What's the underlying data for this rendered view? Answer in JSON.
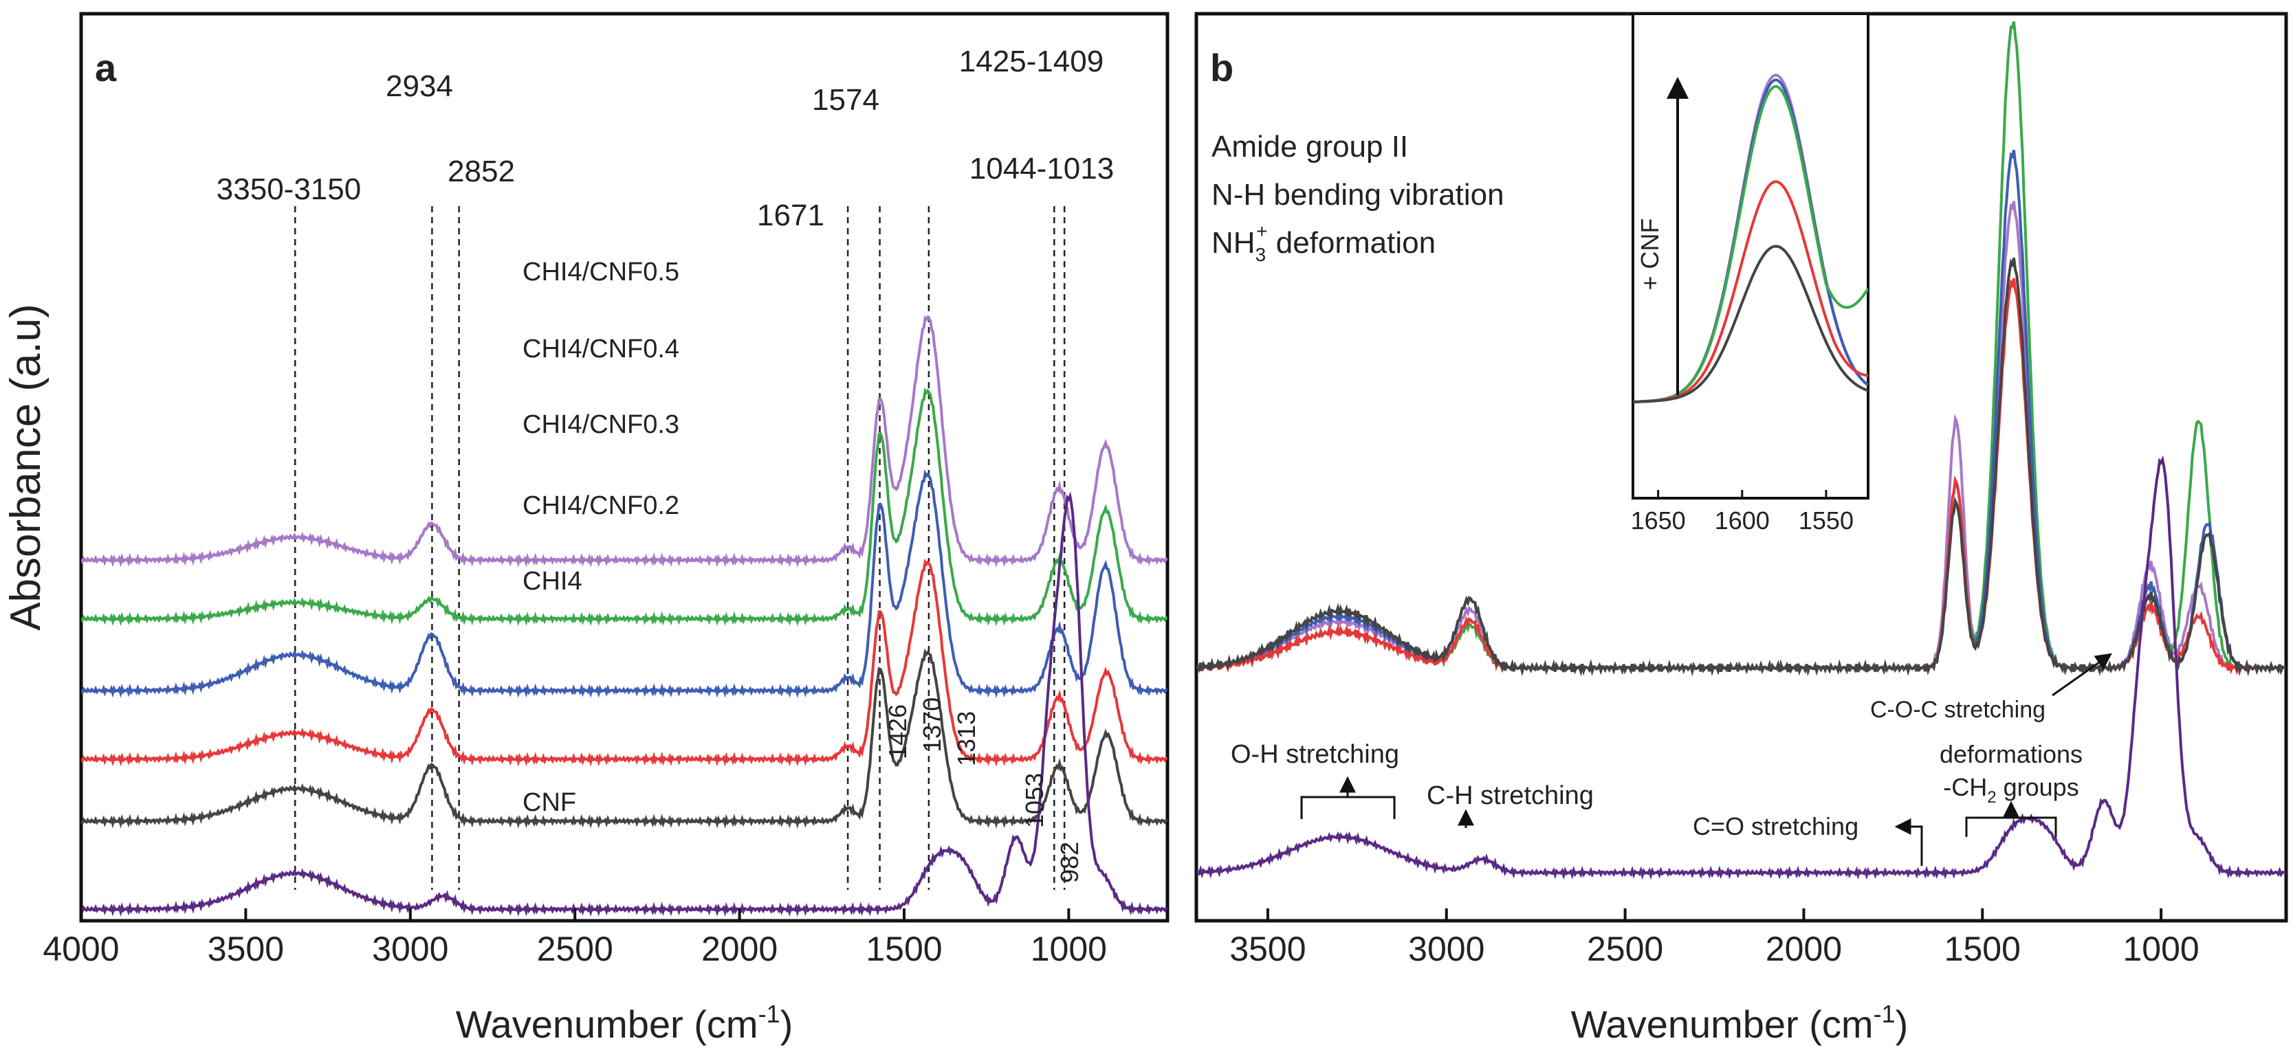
{
  "colors": {
    "CHI4/CNF0.5": "#a678c8",
    "CHI4/CNF0.4": "#3aa94a",
    "CHI4/CNF0.3": "#3e5db3",
    "CHI4/CNF0.2": "#e8373a",
    "CHI4": "#444444",
    "CNF": "#5a2a86"
  },
  "figure": {
    "ylabel": "Absorbance (a.u)",
    "panel_a": {
      "letter": "a",
      "xlabel_main": "Wavenumber (cm",
      "xlabel_sup": "-1",
      "xlabel_close": ")",
      "series_labels": [
        "CHI4/CNF0.5",
        "CHI4/CNF0.4",
        "CHI4/CNF0.3",
        "CHI4/CNF0.2",
        "CHI4",
        "CNF"
      ],
      "peaks": [
        "3350-3150",
        "2934",
        "2852",
        "1671",
        "1574",
        "1425-1409",
        "1044-1013"
      ],
      "cnf_peaks": [
        "1426",
        "1370",
        "1313",
        "1053",
        "982"
      ]
    },
    "panel_b": {
      "letter": "b",
      "xlabel_main": "Wavenumber (cm",
      "xlabel_sup": "-1",
      "xlabel_close": ")",
      "amide_lines": [
        "Amide group II",
        "N-H bending vibration"
      ],
      "nh3_main": "NH",
      "nh3_sub": "3",
      "nh3_sup": "+",
      "nh3_rest": " deformation",
      "annotations": {
        "coc": "C-O-C stretching",
        "oh": "O-H stretching",
        "ch": "C-H stretching",
        "co": "C=O stretching",
        "def1": "deformations",
        "def2_pre": "-CH",
        "def2_sub": "2",
        "def2_post": " groups"
      },
      "inset": {
        "arrow_label": "+ CNF"
      }
    }
  },
  "chart_data": [
    {
      "type": "line",
      "panel": "a",
      "title": "",
      "xlabel": "Wavenumber (cm-1)",
      "ylabel": "Absorbance (a.u)",
      "xlim": [
        4000,
        700
      ],
      "x_ticks": [
        4000,
        3500,
        3000,
        2500,
        2000,
        1500,
        1000
      ],
      "x_tick_labels": [
        "4000",
        "3500",
        "3000",
        "2500",
        "2000",
        "1500",
        "1000"
      ],
      "y_ticks": [],
      "dashed_lines": [
        3350,
        2934,
        2852,
        1671,
        1574,
        1425,
        1044,
        1013
      ],
      "series": [
        {
          "name": "CHI4/CNF0.5",
          "offset": 5.0,
          "features": [
            [
              3350,
              0.35
            ],
            [
              2934,
              0.55
            ],
            [
              1671,
              0.2
            ],
            [
              1574,
              2.3
            ],
            [
              1500,
              0.9
            ],
            [
              1425,
              3.55
            ],
            [
              1030,
              1.1
            ],
            [
              895,
              1.3
            ],
            [
              870,
              0.6
            ]
          ]
        },
        {
          "name": "CHI4/CNF0.4",
          "offset": 4.1,
          "features": [
            [
              3350,
              0.25
            ],
            [
              2934,
              0.3
            ],
            [
              1671,
              0.15
            ],
            [
              1574,
              2.65
            ],
            [
              1500,
              1.0
            ],
            [
              1425,
              3.3
            ],
            [
              1030,
              0.9
            ],
            [
              895,
              1.2
            ],
            [
              870,
              0.6
            ]
          ]
        },
        {
          "name": "CHI4/CNF0.3",
          "offset": 3.0,
          "features": [
            [
              3350,
              0.55
            ],
            [
              2934,
              0.85
            ],
            [
              1671,
              0.2
            ],
            [
              1574,
              2.65
            ],
            [
              1500,
              1.1
            ],
            [
              1425,
              3.1
            ],
            [
              1030,
              0.95
            ],
            [
              895,
              1.45
            ],
            [
              870,
              0.6
            ]
          ]
        },
        {
          "name": "CHI4/CNF0.2",
          "offset": 1.95,
          "features": [
            [
              3350,
              0.4
            ],
            [
              2934,
              0.75
            ],
            [
              1671,
              0.2
            ],
            [
              1574,
              2.1
            ],
            [
              1500,
              0.85
            ],
            [
              1425,
              2.85
            ],
            [
              1030,
              0.95
            ],
            [
              895,
              0.85
            ],
            [
              870,
              0.6
            ]
          ]
        },
        {
          "name": "CHI4",
          "offset": 1.0,
          "features": [
            [
              3350,
              0.5
            ],
            [
              2934,
              0.85
            ],
            [
              1671,
              0.2
            ],
            [
              1574,
              2.2
            ],
            [
              1500,
              0.7
            ],
            [
              1425,
              2.45
            ],
            [
              1030,
              0.85
            ],
            [
              895,
              0.85
            ],
            [
              870,
              0.6
            ]
          ]
        },
        {
          "name": "CNF",
          "offset": -0.35,
          "features": [
            [
              3350,
              0.55
            ],
            [
              2900,
              0.2
            ],
            [
              1426,
              0.45
            ],
            [
              1370,
              0.55
            ],
            [
              1313,
              0.5
            ],
            [
              1160,
              1.1
            ],
            [
              1053,
              3.0
            ],
            [
              1000,
              3.6
            ],
            [
              982,
              2.5
            ],
            [
              897,
              0.5
            ]
          ]
        }
      ]
    },
    {
      "type": "line",
      "panel": "b",
      "title": "",
      "xlabel": "Wavenumber (cm-1)",
      "xlim": [
        3700,
        650
      ],
      "x_ticks": [
        3500,
        3000,
        2500,
        2000,
        1500,
        1000
      ],
      "x_tick_labels": [
        "3500",
        "3000",
        "2500",
        "2000",
        "1500",
        "1000"
      ],
      "y_ticks": [],
      "series": [
        {
          "name": "CHI4/CNF0.5",
          "features": [
            [
              3300,
              0.45
            ],
            [
              2934,
              0.55
            ],
            [
              1574,
              2.4
            ],
            [
              1415,
              4.5
            ],
            [
              1030,
              1.0
            ],
            [
              895,
              0.8
            ]
          ]
        },
        {
          "name": "CHI4/CNF0.4",
          "features": [
            [
              3300,
              0.35
            ],
            [
              2934,
              0.4
            ],
            [
              1574,
              1.8
            ],
            [
              1415,
              6.25
            ],
            [
              1030,
              0.6
            ],
            [
              895,
              2.4
            ]
          ]
        },
        {
          "name": "CHI4/CNF0.3",
          "features": [
            [
              3300,
              0.5
            ],
            [
              2934,
              0.65
            ],
            [
              1574,
              1.8
            ],
            [
              1415,
              5.0
            ],
            [
              1030,
              0.8
            ],
            [
              870,
              1.4
            ]
          ]
        },
        {
          "name": "CHI4/CNF0.2",
          "features": [
            [
              3300,
              0.35
            ],
            [
              2934,
              0.45
            ],
            [
              1574,
              1.8
            ],
            [
              1415,
              3.75
            ],
            [
              1030,
              0.6
            ],
            [
              895,
              0.5
            ]
          ]
        },
        {
          "name": "CHI4",
          "features": [
            [
              3300,
              0.55
            ],
            [
              2934,
              0.65
            ],
            [
              1574,
              1.6
            ],
            [
              1415,
              3.95
            ],
            [
              1030,
              0.7
            ],
            [
              870,
              1.3
            ]
          ]
        },
        {
          "name": "CNF",
          "features": [
            [
              3300,
              0.55
            ],
            [
              2900,
              0.2
            ],
            [
              1426,
              0.45
            ],
            [
              1370,
              0.5
            ],
            [
              1313,
              0.45
            ],
            [
              1160,
              1.1
            ],
            [
              1053,
              3.0
            ],
            [
              1000,
              3.6
            ],
            [
              982,
              2.5
            ],
            [
              897,
              0.5
            ]
          ]
        }
      ]
    },
    {
      "type": "line",
      "panel": "b-inset",
      "xlabel": "",
      "xlim": [
        1665,
        1525
      ],
      "x_ticks": [
        1650,
        1600,
        1550
      ],
      "x_tick_labels": [
        "1650",
        "1600",
        "1550"
      ],
      "y_ticks": [],
      "series": [
        {
          "name": "CHI4/CNF0.5",
          "peak": 1.0
        },
        {
          "name": "CHI4/CNF0.3",
          "peak": 0.985
        },
        {
          "name": "CHI4/CNF0.4",
          "peak": 0.965
        },
        {
          "name": "CHI4/CNF0.2",
          "peak": 0.67
        },
        {
          "name": "CHI4",
          "peak": 0.47
        }
      ]
    }
  ]
}
